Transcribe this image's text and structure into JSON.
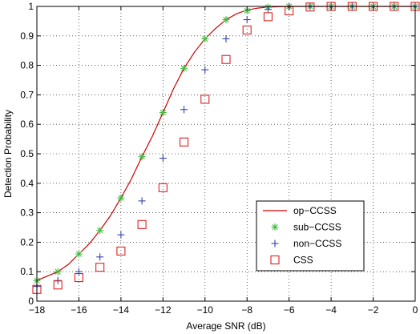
{
  "chart_data": {
    "type": "line",
    "title": "",
    "xlabel": "Average SNR (dB)",
    "ylabel": "Detection Probability",
    "xlim": [
      -18,
      0
    ],
    "ylim": [
      0,
      1
    ],
    "xticks": [
      -18,
      -16,
      -14,
      -12,
      -10,
      -8,
      -6,
      -4,
      -2,
      0
    ],
    "yticks": [
      0,
      0.1,
      0.2,
      0.3,
      0.4,
      0.5,
      0.6,
      0.7,
      0.8,
      0.9,
      1
    ],
    "grid": true,
    "legend_position": "lower-right",
    "series": [
      {
        "name": "op−CCSS",
        "style": "line",
        "color": "#cc0000",
        "x": [
          -18,
          -17.5,
          -17,
          -16.5,
          -16,
          -15.5,
          -15,
          -14.5,
          -14,
          -13.5,
          -13,
          -12.5,
          -12,
          -11.5,
          -11,
          -10.5,
          -10,
          -9.5,
          -9,
          -8.5,
          -8,
          -7.5,
          -7,
          -6.5,
          -6,
          -5.5,
          -5,
          -4,
          -3,
          -2,
          -1,
          0
        ],
        "y": [
          0.07,
          0.085,
          0.1,
          0.125,
          0.16,
          0.195,
          0.24,
          0.29,
          0.35,
          0.415,
          0.49,
          0.56,
          0.64,
          0.72,
          0.79,
          0.845,
          0.89,
          0.925,
          0.955,
          0.975,
          0.988,
          0.994,
          0.998,
          0.999,
          1.0,
          1.0,
          1.0,
          1.0,
          1.0,
          1.0,
          1.0,
          1.0
        ]
      },
      {
        "name": "sub−CCSS",
        "style": "marker",
        "marker": "asterisk",
        "color": "#44bb44",
        "x": [
          -18,
          -17,
          -16,
          -15,
          -14,
          -13,
          -12,
          -11,
          -10,
          -9,
          -8,
          -7,
          -6,
          -5,
          -4,
          -3,
          -2,
          -1,
          0
        ],
        "y": [
          0.07,
          0.1,
          0.16,
          0.24,
          0.35,
          0.49,
          0.64,
          0.79,
          0.89,
          0.955,
          0.985,
          0.997,
          1.0,
          1.0,
          1.0,
          1.0,
          1.0,
          1.0,
          1.0
        ]
      },
      {
        "name": "non−CCSS",
        "style": "marker",
        "marker": "plus",
        "color": "#3344aa",
        "x": [
          -18,
          -17,
          -16,
          -15,
          -14,
          -13,
          -12,
          -11,
          -10,
          -9,
          -8,
          -7,
          -6,
          -5,
          -4,
          -3,
          -2,
          -1,
          0
        ],
        "y": [
          0.05,
          0.07,
          0.1,
          0.15,
          0.225,
          0.34,
          0.485,
          0.65,
          0.785,
          0.89,
          0.955,
          0.99,
          1.0,
          1.0,
          1.0,
          1.0,
          1.0,
          1.0,
          1.0
        ]
      },
      {
        "name": "CSS",
        "style": "marker",
        "marker": "square",
        "color": "#dd2222",
        "x": [
          -18,
          -17,
          -16,
          -15,
          -14,
          -13,
          -12,
          -11,
          -10,
          -9,
          -8,
          -7,
          -6,
          -5,
          -4,
          -3,
          -2,
          -1,
          0
        ],
        "y": [
          0.04,
          0.055,
          0.08,
          0.115,
          0.17,
          0.26,
          0.385,
          0.54,
          0.685,
          0.82,
          0.92,
          0.965,
          0.985,
          0.998,
          1.0,
          1.0,
          1.0,
          1.0,
          1.0
        ]
      }
    ]
  }
}
